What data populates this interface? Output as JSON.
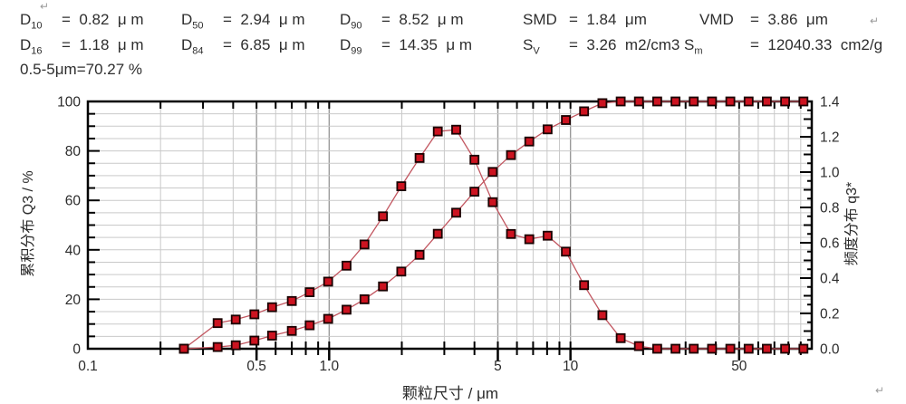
{
  "header": {
    "return_mark": "↵",
    "row1": [
      {
        "sym": "D",
        "sub": "10",
        "val": "=  0.82  μ m"
      },
      {
        "sym": "D",
        "sub": "50",
        "val": "=  2.94  μ m"
      },
      {
        "sym": "D",
        "sub": "90",
        "val": "=  8.52  μ m"
      },
      {
        "sym": "SMD",
        "sub": "",
        "val": "=  1.84  μm"
      },
      {
        "sym": "VMD",
        "sub": "",
        "val": "=  3.86  μm"
      }
    ],
    "row2": [
      {
        "sym": "D",
        "sub": "16",
        "val": "=  1.18  μ m"
      },
      {
        "sym": "D",
        "sub": "84",
        "val": "=  6.85  μ m"
      },
      {
        "sym": "D",
        "sub": "99",
        "val": "=  14.35  μ m"
      },
      {
        "sym": "S",
        "sub": "V",
        "val": "=  3.26  m2/cm3"
      },
      {
        "sym": "S",
        "sub": "m",
        "val": "=  12040.33  cm2/g"
      }
    ],
    "row3": "0.5-5μm=70.27 %"
  },
  "chart_data": {
    "type": "line",
    "x_scale": "log",
    "xlabel": "颗粒尺寸 / μm",
    "ylabel_left": "累积分布 Q3 / %",
    "ylabel_right": "频度分布 q3*",
    "xlim": [
      0.1,
      100
    ],
    "ylim_left": [
      0,
      100
    ],
    "ylim_right": [
      0,
      1.4
    ],
    "x_ticks": [
      0.1,
      0.5,
      1.0,
      5,
      10,
      50
    ],
    "x_tick_labels": [
      "0.1",
      "0.5",
      "1.0",
      "5",
      "10",
      "50"
    ],
    "y_ticks_left": [
      0,
      20,
      40,
      60,
      80,
      100
    ],
    "y_tick_labels_left": [
      "0",
      "20",
      "40",
      "60",
      "80",
      "100"
    ],
    "y_ticks_right": [
      0.0,
      0.2,
      0.4,
      0.6,
      0.8,
      1.0,
      1.2,
      1.4
    ],
    "y_tick_labels_right": [
      "0.0",
      "0.2",
      "0.4",
      "0.6",
      "0.8",
      "1.0",
      "1.2",
      "1.4"
    ],
    "grid": true,
    "legend": "none",
    "marker": "square",
    "colors": {
      "marker_fill": "#cc1320",
      "marker_edge": "#1a0000",
      "line": "#c25660",
      "grid_minor": "#c9c9c9",
      "grid_major": "#9a9a9a",
      "axis": "#000000",
      "text": "#2b2b2b"
    },
    "x": [
      0.25,
      0.345,
      0.41,
      0.49,
      0.58,
      0.7,
      0.83,
      0.99,
      1.18,
      1.4,
      1.67,
      1.99,
      2.37,
      2.82,
      3.36,
      4.0,
      4.76,
      5.67,
      6.75,
      8.04,
      9.57,
      11.39,
      13.56,
      16.15,
      19.22,
      22.88,
      27.24,
      32.43,
      38.61,
      45.97,
      54.73,
      65.15,
      77.57,
      92.34
    ],
    "series": [
      {
        "name": "累积分布 Q3",
        "axis": "left",
        "values": [
          0,
          0.7,
          1.4,
          3.3,
          5.3,
          7.2,
          9.5,
          12.1,
          15.8,
          20.0,
          25.2,
          31.2,
          38.0,
          46.5,
          55.0,
          63.5,
          71.5,
          78.3,
          83.8,
          88.7,
          92.5,
          96.0,
          99.3,
          100,
          100,
          100,
          100,
          100,
          100,
          100,
          100,
          100,
          100,
          100
        ]
      },
      {
        "name": "频度分布 q3*",
        "axis": "right",
        "values": [
          0,
          0.145,
          0.165,
          0.195,
          0.235,
          0.27,
          0.32,
          0.38,
          0.47,
          0.59,
          0.75,
          0.92,
          1.08,
          1.23,
          1.24,
          1.07,
          0.83,
          0.65,
          0.62,
          0.64,
          0.55,
          0.36,
          0.19,
          0.06,
          0.015,
          0,
          0,
          0,
          0,
          0,
          0,
          0,
          0,
          0
        ]
      }
    ]
  }
}
